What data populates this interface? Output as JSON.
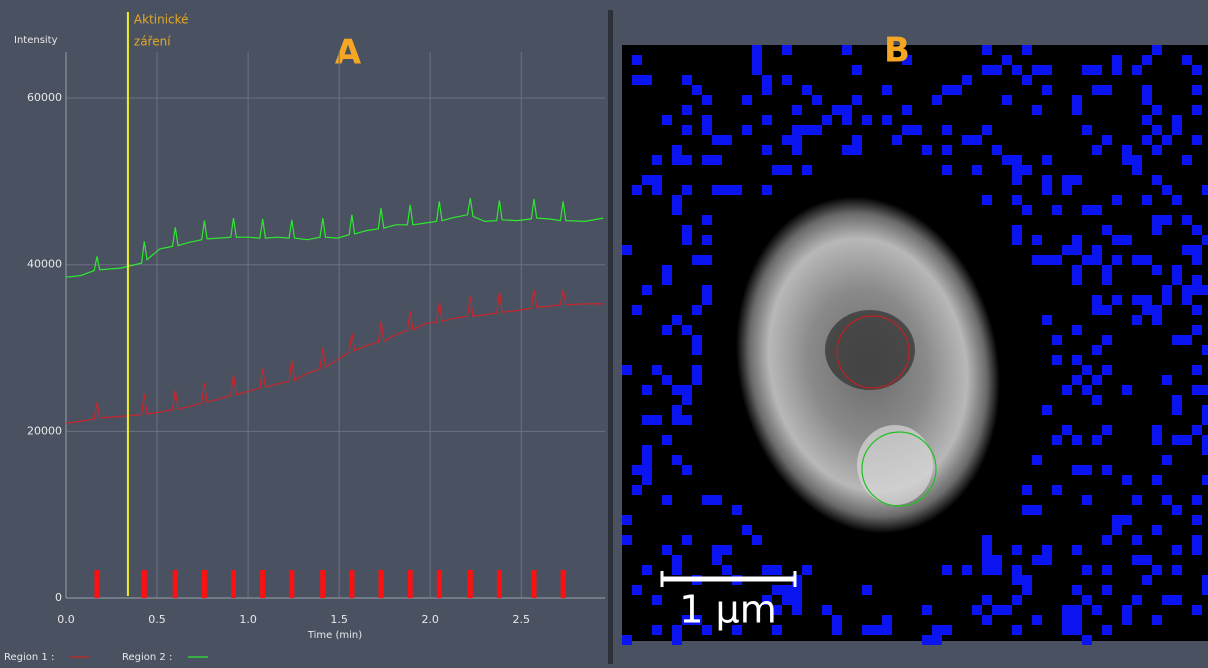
{
  "chart_data": {
    "type": "line",
    "panel_label": "A",
    "ylabel": "Intensity",
    "xlabel": "Time (min)",
    "xlim": [
      0,
      2.96
    ],
    "ylim": [
      0,
      65535
    ],
    "xticks": [
      {
        "value": 0,
        "label": "0.0"
      },
      0.5,
      {
        "value": 1,
        "label": "1.0"
      },
      1.5,
      {
        "value": 2,
        "label": "2.0"
      },
      2.5
    ],
    "yticks": [
      0,
      20000,
      40000,
      60000
    ],
    "grid": true,
    "x": [
      0,
      0.08,
      0.155,
      0.17,
      0.185,
      0.3,
      0.415,
      0.43,
      0.445,
      0.515,
      0.585,
      0.6,
      0.615,
      0.68,
      0.745,
      0.76,
      0.775,
      0.84,
      0.905,
      0.92,
      0.935,
      1.0,
      1.065,
      1.08,
      1.095,
      1.16,
      1.225,
      1.24,
      1.255,
      1.325,
      1.395,
      1.41,
      1.425,
      1.49,
      1.555,
      1.57,
      1.585,
      1.65,
      1.715,
      1.73,
      1.745,
      1.81,
      1.875,
      1.89,
      1.905,
      1.97,
      2.035,
      2.05,
      2.065,
      2.135,
      2.205,
      2.22,
      2.235,
      2.3,
      2.365,
      2.38,
      2.395,
      2.475,
      2.555,
      2.57,
      2.585,
      2.65,
      2.715,
      2.73,
      2.745,
      2.85,
      2.95
    ],
    "series": [
      {
        "name": "Region 1 :",
        "color": "#c8262a",
        "values": [
          21000,
          21200,
          21500,
          23500,
          21600,
          21800,
          22000,
          24500,
          22100,
          22300,
          22600,
          25000,
          22700,
          23000,
          23400,
          25800,
          23500,
          23900,
          24300,
          26800,
          24400,
          24800,
          25200,
          27500,
          25300,
          25700,
          26000,
          28500,
          26100,
          27000,
          27500,
          30000,
          27700,
          28600,
          29500,
          31800,
          29700,
          30300,
          30700,
          33200,
          30800,
          31600,
          32100,
          34400,
          32200,
          32900,
          33100,
          35500,
          33200,
          33600,
          33800,
          36200,
          33800,
          34000,
          34200,
          36800,
          34300,
          34500,
          34800,
          37000,
          34900,
          35000,
          35200,
          37000,
          35200,
          35300,
          35300
        ]
      },
      {
        "name": "Region 2 :",
        "color": "#2ee82e",
        "values": [
          38500,
          38700,
          39300,
          41000,
          39400,
          39600,
          40200,
          42800,
          40600,
          41900,
          42200,
          44500,
          42300,
          42700,
          43000,
          45300,
          43100,
          43200,
          43300,
          45600,
          43300,
          43300,
          43200,
          45500,
          43200,
          43300,
          43200,
          45400,
          43200,
          43000,
          43300,
          45600,
          43300,
          43200,
          43600,
          46000,
          43700,
          44100,
          44300,
          46800,
          44400,
          44800,
          44800,
          47200,
          44800,
          45000,
          45200,
          47600,
          45300,
          45700,
          46000,
          48000,
          45800,
          45200,
          45300,
          47700,
          45400,
          45300,
          45500,
          47900,
          45600,
          45500,
          45300,
          47600,
          45300,
          45200,
          45600
        ]
      }
    ],
    "events": {
      "color": "#ff1010",
      "x": [
        0.17,
        0.43,
        0.6,
        0.76,
        0.92,
        1.08,
        1.24,
        1.41,
        1.57,
        1.73,
        1.89,
        2.05,
        2.22,
        2.38,
        2.57,
        2.73
      ]
    },
    "annotation": {
      "x": 0.34,
      "color": "#f0f020",
      "text": [
        "Aktinické",
        "záření"
      ]
    }
  },
  "panel_b": {
    "label": "B",
    "scale_bar": "1 µm"
  }
}
